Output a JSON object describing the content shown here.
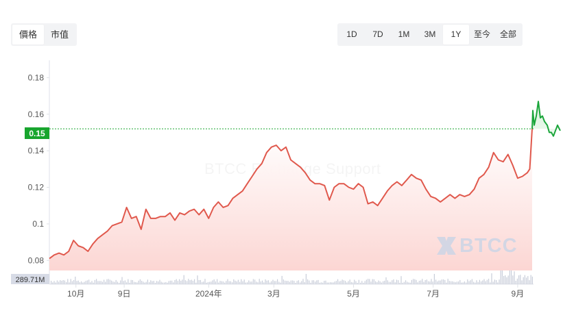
{
  "tabs_left": [
    {
      "label": "價格",
      "active": true
    },
    {
      "label": "市值",
      "active": false
    }
  ],
  "tabs_right": [
    {
      "label": "1D",
      "active": false
    },
    {
      "label": "7D",
      "active": false
    },
    {
      "label": "1M",
      "active": false
    },
    {
      "label": "3M",
      "active": false
    },
    {
      "label": "1Y",
      "active": true
    },
    {
      "label": "至今",
      "active": false
    },
    {
      "label": "全部",
      "active": false
    }
  ],
  "watermark": "BTCC Exchange Support",
  "logo_text": "BTCC",
  "colors": {
    "line_red": "#e0584c",
    "line_green": "#1aa53a",
    "fill_red": "#fde3e1",
    "fill_green": "#e3f5e6",
    "price_tag": "#18a52e",
    "volume_tag": "#d7dbe6",
    "volume_bar": "#c8cdd9"
  },
  "chart_data": {
    "type": "area",
    "x_ticks": [
      "10月",
      "9日",
      "2024年",
      "3月",
      "5月",
      "7月",
      "9月"
    ],
    "y_ticks": [
      "0.18",
      "0.16",
      "0.14",
      "0.12",
      "0.1",
      "0.08"
    ],
    "ylim": [
      0.0745,
      0.1895
    ],
    "xlim": [
      0,
      100
    ],
    "current_price": 0.152,
    "current_price_label": "0.15",
    "volume_label": "289.71M",
    "grid": false,
    "series": [
      {
        "segment": "red",
        "points": [
          [
            0,
            0.081
          ],
          [
            1,
            0.083
          ],
          [
            2,
            0.084
          ],
          [
            3,
            0.083
          ],
          [
            4,
            0.085
          ],
          [
            5,
            0.091
          ],
          [
            6,
            0.088
          ],
          [
            7,
            0.087
          ],
          [
            8,
            0.085
          ],
          [
            9,
            0.089
          ],
          [
            10,
            0.092
          ],
          [
            11,
            0.094
          ],
          [
            12,
            0.096
          ],
          [
            13,
            0.099
          ],
          [
            14,
            0.1
          ],
          [
            15,
            0.101
          ],
          [
            16,
            0.109
          ],
          [
            17,
            0.103
          ],
          [
            18,
            0.104
          ],
          [
            19,
            0.097
          ],
          [
            20,
            0.108
          ],
          [
            21,
            0.103
          ],
          [
            22,
            0.103
          ],
          [
            23,
            0.104
          ],
          [
            24,
            0.104
          ],
          [
            25,
            0.106
          ],
          [
            26,
            0.102
          ],
          [
            27,
            0.106
          ],
          [
            28,
            0.105
          ],
          [
            29,
            0.107
          ],
          [
            30,
            0.108
          ],
          [
            31,
            0.105
          ],
          [
            32,
            0.108
          ],
          [
            33,
            0.103
          ],
          [
            34,
            0.109
          ],
          [
            35,
            0.112
          ],
          [
            36,
            0.109
          ],
          [
            37,
            0.11
          ],
          [
            38,
            0.114
          ],
          [
            39,
            0.116
          ],
          [
            40,
            0.118
          ],
          [
            41,
            0.122
          ],
          [
            42,
            0.126
          ],
          [
            43,
            0.13
          ],
          [
            44,
            0.133
          ],
          [
            45,
            0.139
          ],
          [
            46,
            0.142
          ],
          [
            47,
            0.143
          ],
          [
            48,
            0.14
          ],
          [
            49,
            0.142
          ],
          [
            50,
            0.135
          ],
          [
            51,
            0.133
          ],
          [
            52,
            0.131
          ],
          [
            53,
            0.128
          ],
          [
            54,
            0.124
          ],
          [
            55,
            0.122
          ],
          [
            56,
            0.122
          ],
          [
            57,
            0.121
          ],
          [
            58,
            0.113
          ],
          [
            59,
            0.12
          ],
          [
            60,
            0.122
          ],
          [
            61,
            0.122
          ],
          [
            62,
            0.12
          ],
          [
            63,
            0.119
          ],
          [
            64,
            0.122
          ],
          [
            65,
            0.12
          ],
          [
            66,
            0.111
          ],
          [
            67,
            0.112
          ],
          [
            68,
            0.11
          ],
          [
            69,
            0.114
          ],
          [
            70,
            0.118
          ],
          [
            71,
            0.121
          ],
          [
            72,
            0.123
          ],
          [
            73,
            0.121
          ],
          [
            74,
            0.124
          ],
          [
            75,
            0.127
          ],
          [
            76,
            0.125
          ],
          [
            77,
            0.124
          ],
          [
            78,
            0.119
          ],
          [
            79,
            0.115
          ],
          [
            80,
            0.114
          ],
          [
            81,
            0.112
          ],
          [
            82,
            0.114
          ],
          [
            83,
            0.116
          ],
          [
            84,
            0.114
          ],
          [
            85,
            0.116
          ],
          [
            86,
            0.115
          ],
          [
            87,
            0.116
          ],
          [
            88,
            0.119
          ],
          [
            89,
            0.125
          ],
          [
            90,
            0.127
          ],
          [
            91,
            0.131
          ],
          [
            92,
            0.139
          ],
          [
            93,
            0.135
          ],
          [
            94,
            0.134
          ],
          [
            95,
            0.138
          ],
          [
            96,
            0.132
          ],
          [
            97,
            0.125
          ],
          [
            98,
            0.126
          ],
          [
            99,
            0.128
          ],
          [
            99.5,
            0.13
          ],
          [
            100,
            0.152
          ]
        ]
      }
    ]
  }
}
